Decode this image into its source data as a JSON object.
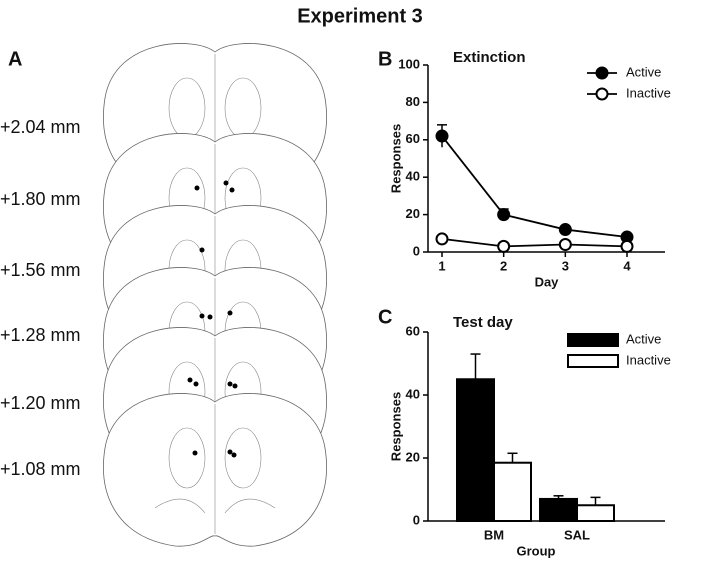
{
  "figure_title": "Experiment 3",
  "panels": [
    "A",
    "B",
    "C"
  ],
  "atlas_labels": [
    "+2.04 mm",
    "+1.80 mm",
    "+1.56 mm",
    "+1.28 mm",
    "+1.20 mm",
    "+1.08 mm"
  ],
  "chart_data": [
    {
      "type": "line",
      "title": "Extinction",
      "xlabel": "Day",
      "ylabel": "Responses",
      "categories": [
        "1",
        "2",
        "3",
        "4"
      ],
      "series": [
        {
          "name": "Active",
          "color": "#000000",
          "values": [
            62,
            20,
            12,
            8
          ],
          "errors": [
            6,
            3,
            1.5,
            1
          ]
        },
        {
          "name": "Inactive",
          "color": "#ffffff",
          "values": [
            7,
            3,
            4,
            3
          ],
          "errors": [
            1,
            0.8,
            1,
            0.8
          ]
        }
      ],
      "ylim": [
        0,
        100
      ],
      "yticks": [
        0,
        20,
        40,
        60,
        80,
        100
      ],
      "legend": "upper right"
    },
    {
      "type": "bar",
      "title": "Test day",
      "xlabel": "Group",
      "ylabel": "Responses",
      "categories": [
        "BM",
        "SAL"
      ],
      "series": [
        {
          "name": "Active",
          "color": "#000000",
          "values": [
            45,
            7
          ],
          "errors": [
            8,
            1
          ]
        },
        {
          "name": "Inactive",
          "color": "#ffffff",
          "values": [
            18.5,
            5
          ],
          "errors": [
            3,
            2.5
          ]
        }
      ],
      "ylim": [
        0,
        60
      ],
      "yticks": [
        0,
        20,
        40,
        60
      ],
      "legend": "upper right"
    }
  ]
}
